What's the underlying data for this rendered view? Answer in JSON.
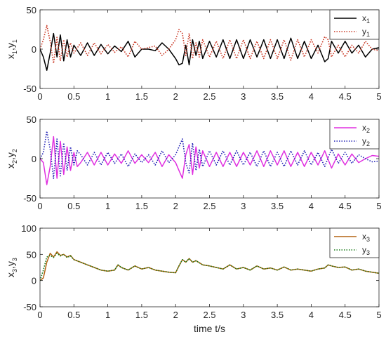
{
  "chart_data": [
    {
      "type": "line",
      "ylabel_parts": {
        "a": "x",
        "a_sub": "1",
        "sep": ",",
        "b": "y",
        "b_sub": "1"
      },
      "xlim": [
        0,
        5
      ],
      "ylim": [
        -50,
        50
      ],
      "xticks": [
        "0",
        "0.5",
        "1",
        "1.5",
        "2",
        "2.5",
        "3",
        "3.5",
        "4",
        "4.5",
        "5"
      ],
      "yticks": [
        "-50",
        "0",
        "50"
      ],
      "legend_position": "top-right",
      "series": [
        {
          "name": "x",
          "sub": "1",
          "color": "#000000",
          "style": "solid",
          "x": [
            0,
            0.05,
            0.1,
            0.15,
            0.2,
            0.25,
            0.3,
            0.35,
            0.4,
            0.45,
            0.5,
            0.6,
            0.7,
            0.8,
            0.9,
            1.0,
            1.1,
            1.2,
            1.3,
            1.4,
            1.5,
            1.6,
            1.7,
            1.8,
            1.9,
            2.0,
            2.05,
            2.1,
            2.15,
            2.2,
            2.25,
            2.3,
            2.35,
            2.4,
            2.5,
            2.6,
            2.7,
            2.8,
            2.9,
            3.0,
            3.1,
            3.2,
            3.3,
            3.4,
            3.5,
            3.6,
            3.7,
            3.8,
            3.9,
            4.0,
            4.1,
            4.2,
            4.25,
            4.3,
            4.4,
            4.5,
            4.6,
            4.7,
            4.8,
            4.9,
            5.0
          ],
          "y": [
            0,
            -10,
            -27,
            -5,
            20,
            -10,
            18,
            -15,
            12,
            -10,
            5,
            -8,
            8,
            -8,
            6,
            -6,
            4,
            -3,
            10,
            -10,
            0,
            0,
            -2,
            8,
            0,
            -12,
            -20,
            -18,
            5,
            -20,
            12,
            -8,
            10,
            -12,
            10,
            -10,
            12,
            -12,
            12,
            -12,
            12,
            -10,
            12,
            -12,
            12,
            -12,
            14,
            -12,
            10,
            -12,
            5,
            -16,
            -12,
            10,
            -5,
            10,
            -5,
            5,
            -10,
            0,
            2
          ]
        },
        {
          "name": "y",
          "sub": "1",
          "color": "#c8321e",
          "style": "dotted",
          "x": [
            0,
            0.05,
            0.1,
            0.15,
            0.2,
            0.25,
            0.3,
            0.35,
            0.4,
            0.45,
            0.5,
            0.6,
            0.7,
            0.8,
            0.9,
            1.0,
            1.1,
            1.2,
            1.3,
            1.4,
            1.5,
            1.6,
            1.7,
            1.8,
            1.9,
            2.0,
            2.05,
            2.1,
            2.15,
            2.2,
            2.25,
            2.3,
            2.35,
            2.4,
            2.5,
            2.6,
            2.7,
            2.8,
            2.9,
            3.0,
            3.1,
            3.2,
            3.3,
            3.4,
            3.5,
            3.6,
            3.7,
            3.8,
            3.9,
            4.0,
            4.1,
            4.2,
            4.25,
            4.3,
            4.4,
            4.5,
            4.6,
            4.7,
            4.8,
            4.9,
            5.0
          ],
          "y": [
            0,
            12,
            30,
            10,
            -18,
            15,
            -15,
            12,
            -10,
            8,
            -5,
            8,
            -8,
            8,
            -6,
            6,
            -4,
            3,
            -10,
            10,
            0,
            2,
            4,
            -8,
            0,
            12,
            25,
            20,
            -8,
            20,
            -12,
            8,
            -10,
            12,
            -10,
            10,
            -12,
            12,
            -12,
            12,
            -12,
            10,
            -12,
            12,
            -12,
            12,
            -14,
            12,
            -10,
            12,
            -5,
            16,
            12,
            -10,
            5,
            -10,
            5,
            -5,
            10,
            0,
            -2
          ]
        }
      ]
    },
    {
      "type": "line",
      "ylabel_parts": {
        "a": "x",
        "a_sub": "2",
        "sep": ",",
        "b": "y",
        "b_sub": "2"
      },
      "xlim": [
        0,
        5
      ],
      "ylim": [
        -50,
        50
      ],
      "xticks": [
        "0",
        "0.5",
        "1",
        "1.5",
        "2",
        "2.5",
        "3",
        "3.5",
        "4",
        "4.5",
        "5"
      ],
      "yticks": [
        "-50",
        "0",
        "50"
      ],
      "legend_position": "top-right",
      "series": [
        {
          "name": "x",
          "sub": "2",
          "color": "#e030e0",
          "style": "solid",
          "x": [
            0,
            0.05,
            0.1,
            0.15,
            0.2,
            0.25,
            0.3,
            0.35,
            0.4,
            0.45,
            0.5,
            0.55,
            0.6,
            0.7,
            0.8,
            0.9,
            1.0,
            1.1,
            1.2,
            1.3,
            1.4,
            1.5,
            1.6,
            1.7,
            1.8,
            1.9,
            2.0,
            2.05,
            2.1,
            2.15,
            2.2,
            2.25,
            2.3,
            2.35,
            2.4,
            2.5,
            2.6,
            2.7,
            2.8,
            2.9,
            3.0,
            3.1,
            3.2,
            3.3,
            3.4,
            3.5,
            3.6,
            3.7,
            3.8,
            3.9,
            4.0,
            4.1,
            4.2,
            4.3,
            4.4,
            4.5,
            4.6,
            4.7,
            4.8,
            4.9,
            5.0
          ],
          "y": [
            0,
            -5,
            -33,
            -10,
            28,
            -25,
            22,
            -20,
            15,
            -15,
            8,
            -10,
            -5,
            8,
            -8,
            8,
            -8,
            6,
            -6,
            10,
            -6,
            5,
            -5,
            8,
            -10,
            5,
            -5,
            -15,
            -25,
            5,
            18,
            -20,
            15,
            -12,
            10,
            -10,
            8,
            -10,
            8,
            -10,
            8,
            -8,
            10,
            -10,
            10,
            -8,
            10,
            -10,
            8,
            -10,
            8,
            -8,
            10,
            -12,
            6,
            -8,
            6,
            -5,
            0,
            4,
            3
          ]
        },
        {
          "name": "y",
          "sub": "2",
          "color": "#1e1eb4",
          "style": "dotted",
          "x": [
            0,
            0.05,
            0.1,
            0.15,
            0.2,
            0.25,
            0.3,
            0.35,
            0.4,
            0.45,
            0.5,
            0.55,
            0.6,
            0.7,
            0.8,
            0.9,
            1.0,
            1.1,
            1.2,
            1.3,
            1.4,
            1.5,
            1.6,
            1.7,
            1.8,
            1.9,
            2.0,
            2.05,
            2.1,
            2.15,
            2.2,
            2.25,
            2.3,
            2.35,
            2.4,
            2.5,
            2.6,
            2.7,
            2.8,
            2.9,
            3.0,
            3.1,
            3.2,
            3.3,
            3.4,
            3.5,
            3.6,
            3.7,
            3.8,
            3.9,
            4.0,
            4.1,
            4.2,
            4.3,
            4.4,
            4.5,
            4.6,
            4.7,
            4.8,
            4.9,
            5.0
          ],
          "y": [
            0,
            8,
            35,
            12,
            -25,
            25,
            -22,
            20,
            -15,
            15,
            -8,
            10,
            5,
            -8,
            8,
            -8,
            8,
            -6,
            6,
            -10,
            6,
            -5,
            5,
            -8,
            10,
            -5,
            5,
            15,
            25,
            -5,
            -18,
            20,
            -15,
            12,
            -10,
            10,
            -8,
            10,
            -8,
            10,
            -8,
            8,
            -10,
            10,
            -10,
            8,
            -10,
            10,
            -8,
            10,
            -8,
            8,
            -10,
            12,
            -6,
            8,
            -6,
            5,
            0,
            -4,
            -3
          ]
        }
      ]
    },
    {
      "type": "line",
      "ylabel_parts": {
        "a": "x",
        "a_sub": "3",
        "sep": ",",
        "b": "y",
        "b_sub": "3"
      },
      "xlabel": "time t/s",
      "xlim": [
        0,
        5
      ],
      "ylim": [
        -50,
        100
      ],
      "xticks": [
        "0",
        "0.5",
        "1",
        "1.5",
        "2",
        "2.5",
        "3",
        "3.5",
        "4",
        "4.5",
        "5"
      ],
      "yticks": [
        "-50",
        "0",
        "50",
        "100"
      ],
      "legend_position": "top-right",
      "series": [
        {
          "name": "x",
          "sub": "3",
          "color": "#b46414",
          "style": "solid",
          "x": [
            0,
            0.05,
            0.1,
            0.15,
            0.2,
            0.25,
            0.3,
            0.35,
            0.4,
            0.45,
            0.5,
            0.6,
            0.7,
            0.8,
            0.9,
            1.0,
            1.1,
            1.15,
            1.2,
            1.3,
            1.4,
            1.5,
            1.6,
            1.7,
            1.8,
            1.9,
            2.0,
            2.05,
            2.1,
            2.15,
            2.2,
            2.25,
            2.3,
            2.4,
            2.5,
            2.6,
            2.7,
            2.8,
            2.9,
            3.0,
            3.1,
            3.2,
            3.3,
            3.4,
            3.5,
            3.6,
            3.7,
            3.8,
            3.9,
            4.0,
            4.1,
            4.2,
            4.25,
            4.3,
            4.4,
            4.5,
            4.6,
            4.7,
            4.8,
            4.9,
            5.0
          ],
          "y": [
            0,
            5,
            35,
            52,
            45,
            55,
            48,
            50,
            45,
            48,
            40,
            35,
            30,
            25,
            20,
            18,
            20,
            30,
            25,
            20,
            28,
            22,
            25,
            20,
            18,
            16,
            15,
            28,
            40,
            35,
            42,
            35,
            38,
            30,
            28,
            25,
            22,
            30,
            22,
            25,
            20,
            28,
            22,
            24,
            20,
            26,
            20,
            22,
            20,
            18,
            22,
            24,
            30,
            28,
            25,
            26,
            20,
            22,
            18,
            16,
            14
          ]
        },
        {
          "name": "y",
          "sub": "3",
          "color": "#147814",
          "style": "dotted",
          "x": [
            0,
            0.05,
            0.1,
            0.15,
            0.2,
            0.25,
            0.3,
            0.35,
            0.4,
            0.45,
            0.5,
            0.6,
            0.7,
            0.8,
            0.9,
            1.0,
            1.1,
            1.15,
            1.2,
            1.3,
            1.4,
            1.5,
            1.6,
            1.7,
            1.8,
            1.9,
            2.0,
            2.05,
            2.1,
            2.15,
            2.2,
            2.25,
            2.3,
            2.4,
            2.5,
            2.6,
            2.7,
            2.8,
            2.9,
            3.0,
            3.1,
            3.2,
            3.3,
            3.4,
            3.5,
            3.6,
            3.7,
            3.8,
            3.9,
            4.0,
            4.1,
            4.2,
            4.25,
            4.3,
            4.4,
            4.5,
            4.6,
            4.7,
            4.8,
            4.9,
            5.0
          ],
          "y": [
            0,
            20,
            45,
            48,
            44,
            52,
            47,
            50,
            44,
            47,
            40,
            35,
            30,
            25,
            20,
            18,
            20,
            30,
            25,
            20,
            28,
            22,
            25,
            20,
            18,
            16,
            15,
            28,
            40,
            35,
            42,
            35,
            38,
            30,
            28,
            25,
            22,
            30,
            22,
            25,
            20,
            28,
            22,
            24,
            20,
            26,
            20,
            22,
            20,
            18,
            22,
            24,
            30,
            28,
            25,
            26,
            20,
            22,
            18,
            16,
            14
          ]
        }
      ]
    }
  ]
}
